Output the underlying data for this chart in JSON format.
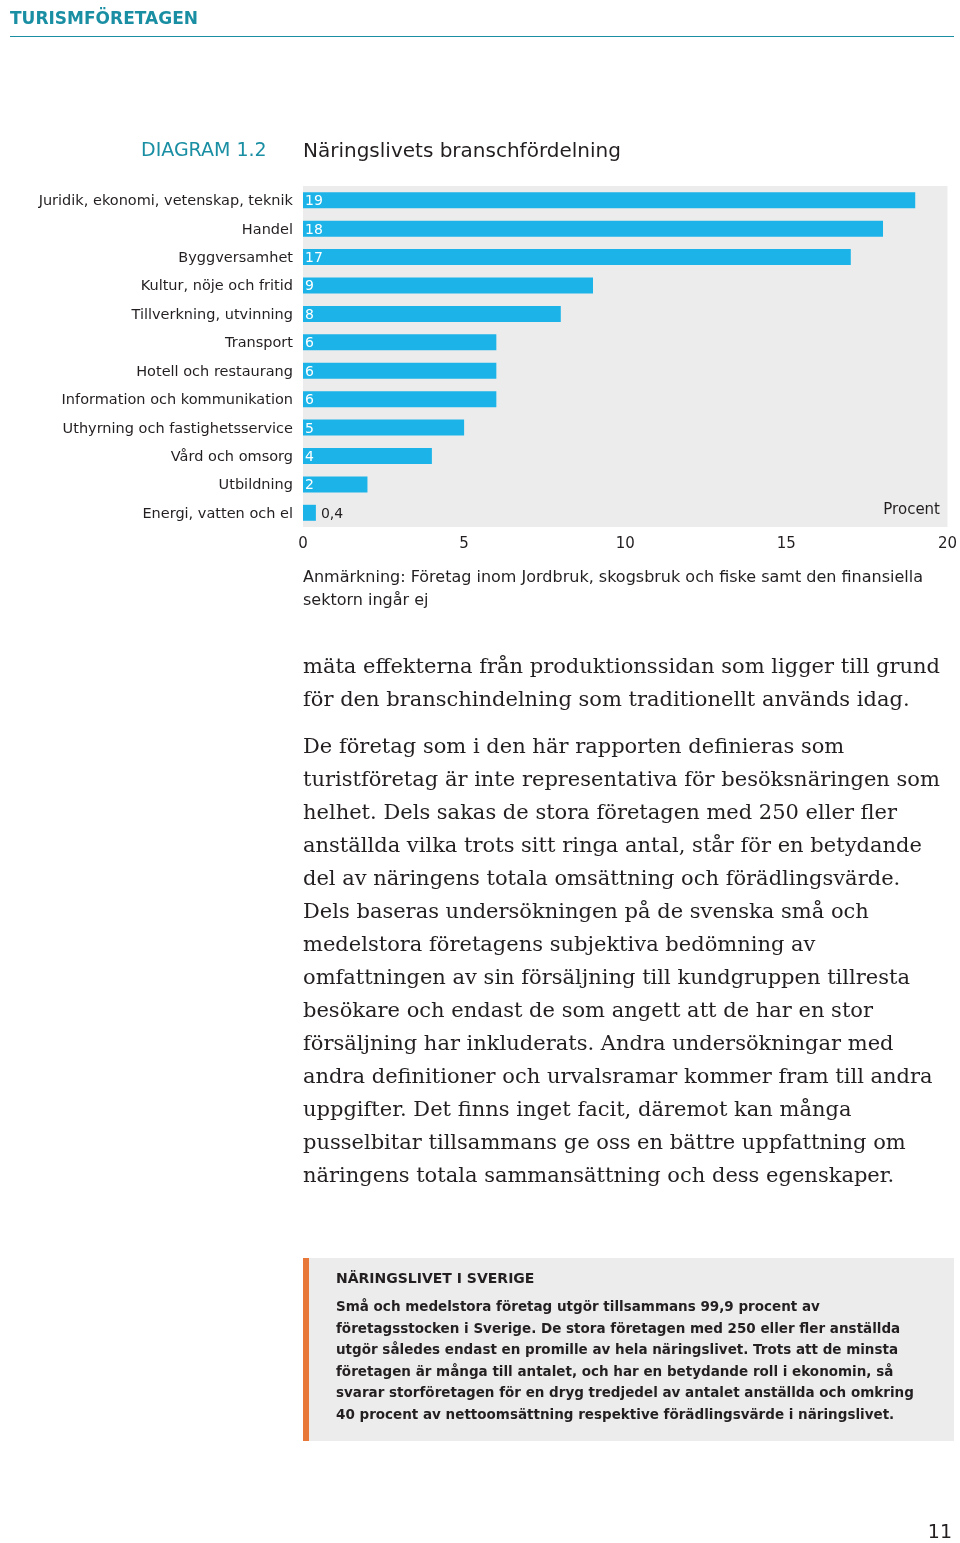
{
  "chart_data": {
    "type": "bar",
    "orientation": "horizontal",
    "title": "Näringslivets branschfördelning",
    "xlabel": "Procent",
    "categories": [
      "Juridik, ekonomi, vetenskap, teknik",
      "Handel",
      "Byggversamhet",
      "Kultur, nöje och fritid",
      "Tillverkning, utvinning",
      "Transport",
      "Hotell och restaurang",
      "Information och kommunikation",
      "Uthyrning och fastighetsservice",
      "Vård och omsorg",
      "Utbildning",
      "Energi, vatten och el"
    ],
    "values": [
      19,
      18,
      17,
      9,
      8,
      6,
      6,
      6,
      5,
      4,
      2,
      0.4
    ],
    "value_labels": [
      "19",
      "18",
      "17",
      "9",
      "8",
      "6",
      "6",
      "6",
      "5",
      "4",
      "2",
      "0,4"
    ],
    "color": "#1cb4e8",
    "xlim": [
      0,
      20
    ],
    "xticks": [
      0,
      5,
      10,
      15,
      20
    ],
    "grid": false,
    "annotations": [
      "TURISMFÖRETAGEN",
      "DIAGRAM 1.2",
      "Anmärkning: Företag inom Jordbruk, skogsbruk och fiske samt den finansiella sektorn ingår ej",
      "mäta effekterna från produktionssidan som ligger till grund för den branschindelning som traditionellt används idag.",
      "De företag som i den här rapporten definieras som turistföretag är inte representativa för besöksnäringen som helhet. Dels sakas de stora företagen med 250 eller fler anställda vilka trots sitt ringa antal, står för en betydande del av näringens totala omsättning och förädlingsvärde. Dels baseras undersökningen på de svenska små och medelstora företagens subjektiva bedömning av omfattningen av sin försäljning till kundgruppen tillresta besökare och endast de som angett att de har en stor försäljning har inkluderats. Andra undersökningar med andra definitioner och urvalsramar kommer fram till andra uppgifter. Det finns inget facit, däremot kan många pusselbitar tillsammans ge oss en bättre uppfattning om näringens totala sammansättning och dess egenskaper.",
      "NÄRINGSLIVET I SVERIGE",
      "Små och medelstora företag utgör tillsammans 99,9 procent av företagsstocken i Sverige. De stora företagen med 250 eller fler anställda utgör således endast en promille av hela näringslivet. Trots att de minsta företagen är många till antalet, och har en betydande roll i ekonomin, så svarar storföretagen för en dryg tredjedel av antalet anställda och omkring 40 procent av nettoomsättning respektive förädlingsvärde i näringslivet.",
      "11"
    ]
  }
}
